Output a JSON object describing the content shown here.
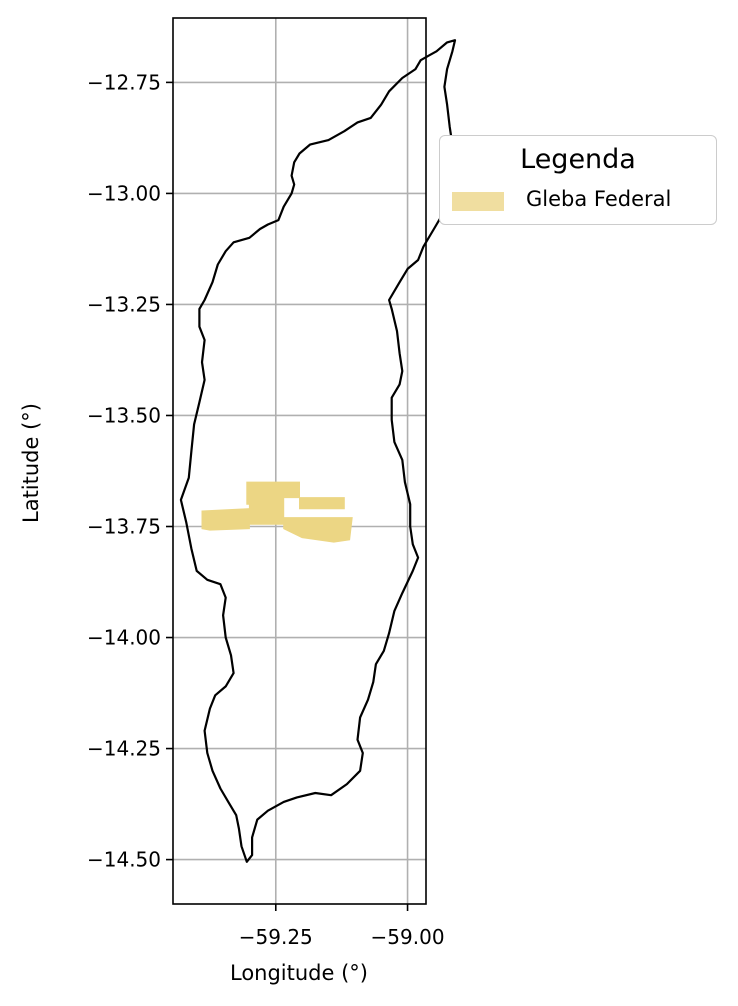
{
  "map": {
    "type": "region-map",
    "xlabel": "Longitude (°)",
    "ylabel": "Latitude (°)",
    "xlim": [
      -59.445,
      -58.965
    ],
    "ylim": [
      -14.6,
      -12.605
    ],
    "x_ticks": [
      {
        "value": -59.25,
        "label": "−59.25"
      },
      {
        "value": -59.0,
        "label": "−59.00"
      }
    ],
    "y_ticks": [
      {
        "value": -12.75,
        "label": "−12.75"
      },
      {
        "value": -13.0,
        "label": "−13.00"
      },
      {
        "value": -13.25,
        "label": "−13.25"
      },
      {
        "value": -13.5,
        "label": "−13.50"
      },
      {
        "value": -13.75,
        "label": "−13.75"
      },
      {
        "value": -14.0,
        "label": "−14.00"
      },
      {
        "value": -14.25,
        "label": "−14.25"
      },
      {
        "value": -14.5,
        "label": "−14.50"
      }
    ],
    "grid": true,
    "outline_color": "#000000",
    "fill_color": "#ecd684",
    "boundary": [
      [
        -58.925,
        -12.66
      ],
      [
        -58.945,
        -12.68
      ],
      [
        -58.96,
        -12.69
      ],
      [
        -58.975,
        -12.7
      ],
      [
        -58.985,
        -12.72
      ],
      [
        -59.01,
        -12.74
      ],
      [
        -59.035,
        -12.77
      ],
      [
        -59.05,
        -12.8
      ],
      [
        -59.07,
        -12.83
      ],
      [
        -59.095,
        -12.84
      ],
      [
        -59.12,
        -12.86
      ],
      [
        -59.15,
        -12.88
      ],
      [
        -59.185,
        -12.89
      ],
      [
        -59.205,
        -12.91
      ],
      [
        -59.215,
        -12.93
      ],
      [
        -59.22,
        -12.96
      ],
      [
        -59.215,
        -12.98
      ],
      [
        -59.22,
        -13.0
      ],
      [
        -59.235,
        -13.03
      ],
      [
        -59.245,
        -13.06
      ],
      [
        -59.265,
        -13.07
      ],
      [
        -59.28,
        -13.08
      ],
      [
        -59.3,
        -13.1
      ],
      [
        -59.33,
        -13.11
      ],
      [
        -59.345,
        -13.13
      ],
      [
        -59.36,
        -13.16
      ],
      [
        -59.37,
        -13.2
      ],
      [
        -59.385,
        -13.24
      ],
      [
        -59.395,
        -13.26
      ],
      [
        -59.395,
        -13.3
      ],
      [
        -59.385,
        -13.33
      ],
      [
        -59.39,
        -13.38
      ],
      [
        -59.385,
        -13.42
      ],
      [
        -59.395,
        -13.47
      ],
      [
        -59.405,
        -13.52
      ],
      [
        -59.41,
        -13.58
      ],
      [
        -59.415,
        -13.64
      ],
      [
        -59.43,
        -13.69
      ],
      [
        -59.42,
        -13.74
      ],
      [
        -59.41,
        -13.8
      ],
      [
        -59.4,
        -13.85
      ],
      [
        -59.38,
        -13.87
      ],
      [
        -59.355,
        -13.88
      ],
      [
        -59.345,
        -13.91
      ],
      [
        -59.35,
        -13.95
      ],
      [
        -59.345,
        -14.0
      ],
      [
        -59.335,
        -14.04
      ],
      [
        -59.33,
        -14.08
      ],
      [
        -59.345,
        -14.11
      ],
      [
        -59.365,
        -14.13
      ],
      [
        -59.375,
        -14.16
      ],
      [
        -59.385,
        -14.21
      ],
      [
        -59.38,
        -14.26
      ],
      [
        -59.37,
        -14.3
      ],
      [
        -59.355,
        -14.34
      ],
      [
        -59.34,
        -14.37
      ],
      [
        -59.325,
        -14.4
      ],
      [
        -59.32,
        -14.43
      ],
      [
        -59.315,
        -14.47
      ],
      [
        -59.305,
        -14.505
      ],
      [
        -59.295,
        -14.49
      ],
      [
        -59.295,
        -14.45
      ],
      [
        -59.285,
        -14.41
      ],
      [
        -59.265,
        -14.39
      ],
      [
        -59.235,
        -14.37
      ],
      [
        -59.21,
        -14.36
      ],
      [
        -59.175,
        -14.35
      ],
      [
        -59.145,
        -14.355
      ],
      [
        -59.115,
        -14.33
      ],
      [
        -59.09,
        -14.3
      ],
      [
        -59.085,
        -14.26
      ],
      [
        -59.095,
        -14.23
      ],
      [
        -59.09,
        -14.18
      ],
      [
        -59.075,
        -14.14
      ],
      [
        -59.065,
        -14.1
      ],
      [
        -59.06,
        -14.06
      ],
      [
        -59.045,
        -14.03
      ],
      [
        -59.035,
        -13.99
      ],
      [
        -59.025,
        -13.94
      ],
      [
        -59.01,
        -13.9
      ],
      [
        -58.99,
        -13.85
      ],
      [
        -58.98,
        -13.82
      ],
      [
        -58.99,
        -13.79
      ],
      [
        -58.995,
        -13.75
      ],
      [
        -58.995,
        -13.7
      ],
      [
        -59.005,
        -13.65
      ],
      [
        -59.01,
        -13.6
      ],
      [
        -59.025,
        -13.56
      ],
      [
        -59.03,
        -13.51
      ],
      [
        -59.03,
        -13.46
      ],
      [
        -59.015,
        -13.43
      ],
      [
        -59.01,
        -13.4
      ],
      [
        -59.015,
        -13.36
      ],
      [
        -59.02,
        -13.31
      ],
      [
        -59.03,
        -13.26
      ],
      [
        -59.035,
        -13.24
      ],
      [
        -59.015,
        -13.2
      ],
      [
        -59.0,
        -13.17
      ],
      [
        -58.98,
        -13.15
      ],
      [
        -58.97,
        -13.12
      ],
      [
        -58.95,
        -13.08
      ],
      [
        -58.935,
        -13.05
      ],
      [
        -58.93,
        -13.01
      ],
      [
        -58.925,
        -12.98
      ],
      [
        -58.915,
        -12.94
      ],
      [
        -58.915,
        -12.89
      ],
      [
        -58.92,
        -12.85
      ],
      [
        -58.925,
        -12.8
      ],
      [
        -58.93,
        -12.76
      ],
      [
        -58.925,
        -12.72
      ],
      [
        -58.915,
        -12.68
      ],
      [
        -58.91,
        -12.655
      ],
      [
        -58.925,
        -12.66
      ]
    ],
    "parcels": [
      [
        [
          -59.305,
          -13.65
        ],
        [
          -59.205,
          -13.65
        ],
        [
          -59.205,
          -13.685
        ],
        [
          -59.235,
          -13.685
        ],
        [
          -59.235,
          -13.745
        ],
        [
          -59.3,
          -13.745
        ],
        [
          -59.3,
          -13.7
        ],
        [
          -59.305,
          -13.7
        ]
      ],
      [
        [
          -59.205,
          -13.685
        ],
        [
          -59.12,
          -13.685
        ],
        [
          -59.12,
          -13.71
        ],
        [
          -59.205,
          -13.71
        ]
      ],
      [
        [
          -59.39,
          -13.715
        ],
        [
          -59.3,
          -13.71
        ],
        [
          -59.3,
          -13.755
        ],
        [
          -59.375,
          -13.758
        ],
        [
          -59.39,
          -13.755
        ]
      ],
      [
        [
          -59.235,
          -13.73
        ],
        [
          -59.105,
          -13.73
        ],
        [
          -59.11,
          -13.78
        ],
        [
          -59.14,
          -13.785
        ],
        [
          -59.2,
          -13.775
        ],
        [
          -59.235,
          -13.755
        ]
      ]
    ]
  },
  "legend": {
    "title": "Legenda",
    "items": [
      {
        "label": "Gleba Federal",
        "color": "#f0dea0"
      }
    ]
  }
}
